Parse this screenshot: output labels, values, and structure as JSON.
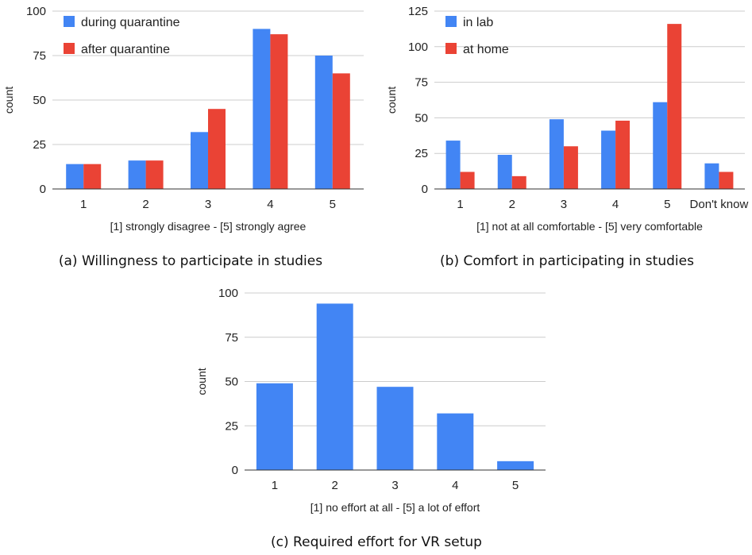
{
  "colors": {
    "blue": "#4285F4",
    "red": "#EA4335"
  },
  "chart_data": [
    {
      "type": "bar",
      "caption": "(a) Willingness to participate in studies",
      "categories": [
        "1",
        "2",
        "3",
        "4",
        "5"
      ],
      "series": [
        {
          "name": "during quarantine",
          "color": "#4285F4",
          "values": [
            14,
            16,
            32,
            90,
            75
          ]
        },
        {
          "name": "after quarantine",
          "color": "#EA4335",
          "values": [
            14,
            16,
            45,
            87,
            65
          ]
        }
      ],
      "xlabel": "[1] strongly disagree - [5] strongly agree",
      "ylabel": "count",
      "ylim": [
        0,
        100
      ],
      "yticks": [
        0,
        25,
        50,
        75,
        100
      ],
      "grid": true,
      "legend": "top-left"
    },
    {
      "type": "bar",
      "caption": "(b) Comfort in participating in studies",
      "categories": [
        "1",
        "2",
        "3",
        "4",
        "5",
        "Don't know"
      ],
      "series": [
        {
          "name": "in lab",
          "color": "#4285F4",
          "values": [
            34,
            24,
            49,
            41,
            61,
            18
          ]
        },
        {
          "name": "at home",
          "color": "#EA4335",
          "values": [
            12,
            9,
            30,
            48,
            116,
            12
          ]
        }
      ],
      "xlabel": "[1] not at all comfortable - [5] very comfortable",
      "ylabel": "count",
      "ylim": [
        0,
        125
      ],
      "yticks": [
        0,
        25,
        50,
        75,
        100,
        125
      ],
      "grid": true,
      "legend": "top-left"
    },
    {
      "type": "bar",
      "caption": "(c) Required effort for VR setup",
      "categories": [
        "1",
        "2",
        "3",
        "4",
        "5"
      ],
      "series": [
        {
          "color": "#4285F4",
          "values": [
            49,
            94,
            47,
            32,
            5
          ]
        }
      ],
      "xlabel": "[1] no effort at all - [5] a lot of effort",
      "ylabel": "count",
      "ylim": [
        0,
        100
      ],
      "yticks": [
        0,
        25,
        50,
        75,
        100
      ],
      "grid": true,
      "legend": "none"
    }
  ]
}
